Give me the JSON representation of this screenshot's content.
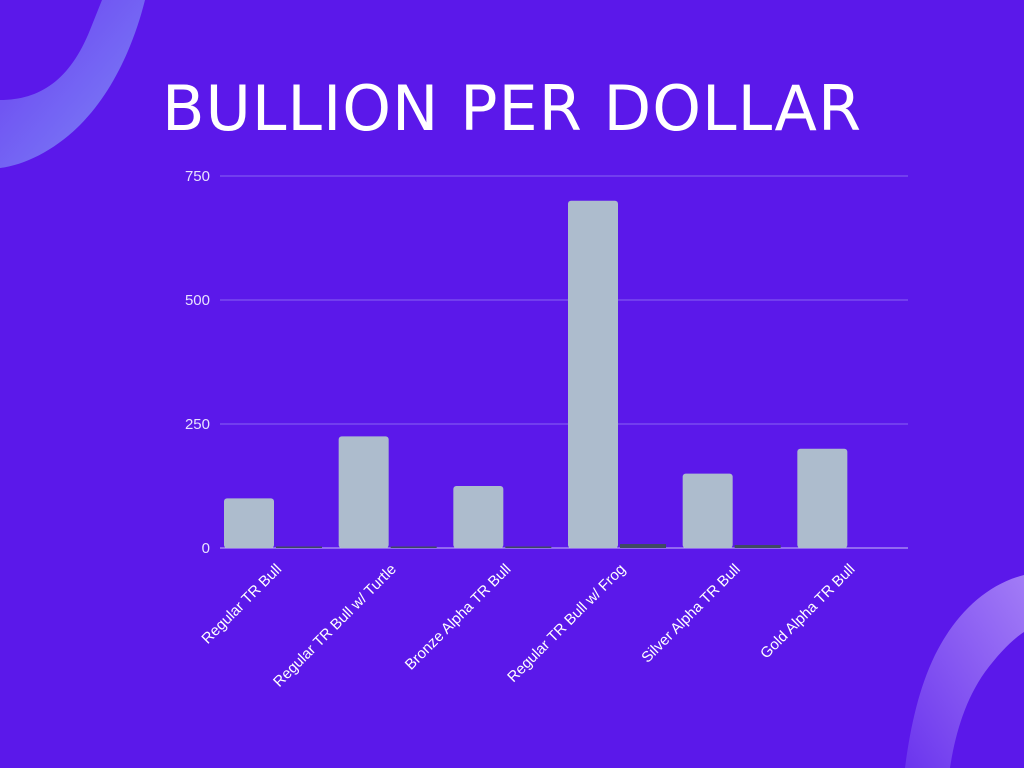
{
  "title": "BULLION PER DOLLAR",
  "colors": {
    "background": "#5b18ea",
    "primary_bar": "#adbccd",
    "secondary_bar": "#3f4a63",
    "gridline": "#8a63f2",
    "accent_shape": "#8d6cf5"
  },
  "chart_data": {
    "type": "bar",
    "categories": [
      "Regular TR Bull",
      "Regular TR Bull w/ Turtle",
      "Bronze Alpha TR Bull",
      "Regular TR Bull w/ Frog",
      "Silver Alpha TR Bull",
      "Gold Alpha TR Bull"
    ],
    "series": [
      {
        "values": [
          100,
          225,
          125,
          700,
          150,
          200
        ]
      },
      {
        "values": [
          2,
          1,
          2,
          8,
          6,
          0
        ]
      }
    ],
    "yticks": [
      0,
      250,
      500,
      750
    ],
    "ylim": [
      0,
      750
    ],
    "grid": true,
    "legend": "none",
    "xlabel": "",
    "ylabel": ""
  }
}
